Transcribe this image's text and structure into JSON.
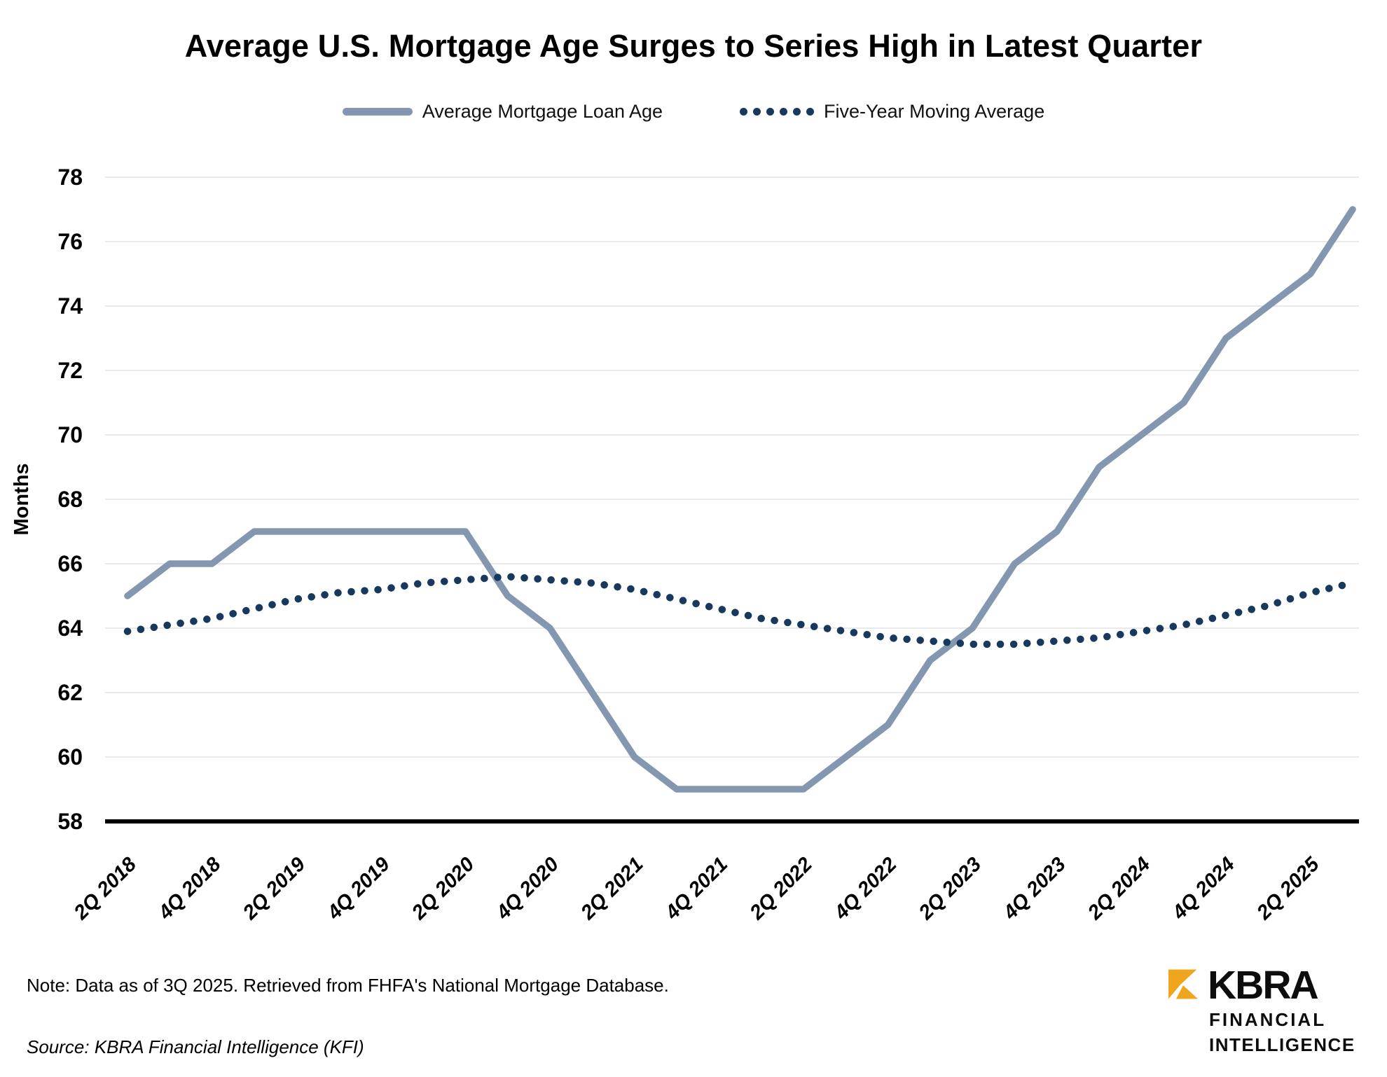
{
  "header": {
    "title": "Average U.S. Mortgage Age Surges to Series High in Latest Quarter"
  },
  "chart_data": {
    "type": "line",
    "x": [
      "2Q 2018",
      "3Q 2018",
      "4Q 2018",
      "1Q 2019",
      "2Q 2019",
      "3Q 2019",
      "4Q 2019",
      "1Q 2020",
      "2Q 2020",
      "3Q 2020",
      "4Q 2020",
      "1Q 2021",
      "2Q 2021",
      "3Q 2021",
      "4Q 2021",
      "1Q 2022",
      "2Q 2022",
      "3Q 2022",
      "4Q 2022",
      "1Q 2023",
      "2Q 2023",
      "3Q 2023",
      "4Q 2023",
      "1Q 2024",
      "2Q 2024",
      "3Q 2024",
      "4Q 2024",
      "1Q 2025",
      "2Q 2025",
      "3Q 2025"
    ],
    "series": [
      {
        "name": "Average Mortgage Loan Age",
        "style": "solid",
        "color": "#8497B0",
        "values": [
          65,
          66,
          66,
          67,
          67,
          67,
          67,
          67,
          67,
          65,
          64,
          62,
          60,
          59,
          59,
          59,
          59,
          60,
          61,
          63,
          64,
          66,
          67,
          69,
          70,
          71,
          73,
          74,
          75,
          77
        ]
      },
      {
        "name": "Five-Year Moving Average",
        "style": "dotted",
        "color": "#17395E",
        "values": [
          63.9,
          64.1,
          64.3,
          64.6,
          64.9,
          65.1,
          65.2,
          65.4,
          65.5,
          65.6,
          65.5,
          65.4,
          65.2,
          64.9,
          64.6,
          64.3,
          64.1,
          63.9,
          63.7,
          63.6,
          63.5,
          63.5,
          63.6,
          63.7,
          63.9,
          64.1,
          64.4,
          64.7,
          65.1,
          65.4
        ]
      }
    ],
    "title": "Average U.S. Mortgage Age Surges to Series High in Latest Quarter",
    "xlabel": "",
    "ylabel": "Months",
    "ylim": [
      58,
      78
    ],
    "ytick_step": 2,
    "yticks": [
      58,
      60,
      62,
      64,
      66,
      68,
      70,
      72,
      74,
      76,
      78
    ],
    "xtick_labels": [
      "2Q 2018",
      "4Q 2018",
      "2Q 2019",
      "4Q 2019",
      "2Q 2020",
      "4Q 2020",
      "2Q 2021",
      "4Q 2021",
      "2Q 2022",
      "4Q 2022",
      "2Q 2023",
      "4Q 2023",
      "2Q 2024",
      "4Q 2024",
      "2Q 2025"
    ],
    "grid": true,
    "legend_position": "top",
    "gridline_color": "#E9E9E9",
    "axis_color": "#000000"
  },
  "footer": {
    "note": "Note: Data as of 3Q 2025. Retrieved from FHFA's National Mortgage Database.",
    "source": "Source: KBRA Financial Intelligence (KFI)"
  },
  "logo": {
    "brand": "KBRA",
    "line1": "FINANCIAL",
    "line2": "INTELLIGENCE",
    "accent_color": "#F0A51E"
  }
}
